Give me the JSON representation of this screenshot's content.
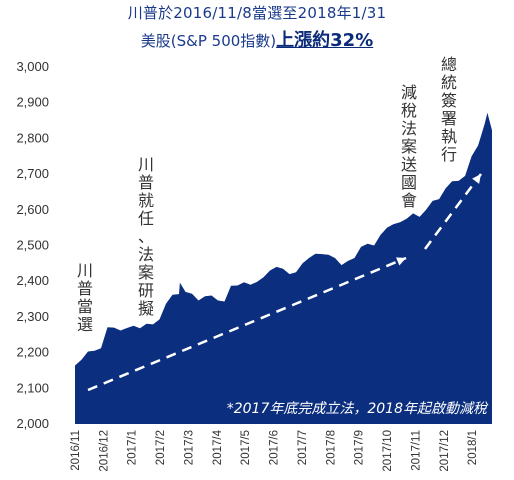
{
  "title_line1": "川普於2016/11/8當選至2018年1/31",
  "title_line2_prefix": "美股(S&P 500指數)",
  "title_line2_highlight": "上漲約32%",
  "colors": {
    "area": "#0b2e7e",
    "title": "#1a3a8c",
    "arrow": "#ffffff",
    "text": "#333333"
  },
  "annotations": {
    "elected": "川普當選",
    "inaugurated": "川普就任、法案研擬",
    "passed": "減稅法案送國會",
    "signed": "總統簽署執行",
    "note": "*2017年底完成立法，2018年起啟動減稅"
  },
  "chart_data": {
    "type": "area",
    "title": "",
    "xlabel": "",
    "ylabel": "",
    "ylim": [
      2000,
      3000
    ],
    "yticks": [
      "2,000",
      "2,100",
      "2,200",
      "2,300",
      "2,400",
      "2,500",
      "2,600",
      "2,700",
      "2,800",
      "2,900",
      "3,000"
    ],
    "xticks": [
      "2016/11",
      "2016/12",
      "2017/1",
      "2017/2",
      "2017/3",
      "2017/4",
      "2017/5",
      "2017/6",
      "2017/7",
      "2017/8",
      "2017/9",
      "2017/10",
      "2017/11",
      "2017/12",
      "2018/1"
    ],
    "x": [
      "2016-11-08",
      "2016-11-15",
      "2016-11-22",
      "2016-11-29",
      "2016-12-06",
      "2016-12-13",
      "2016-12-20",
      "2016-12-27",
      "2017-01-03",
      "2017-01-10",
      "2017-01-17",
      "2017-01-24",
      "2017-01-31",
      "2017-02-07",
      "2017-02-14",
      "2017-02-21",
      "2017-02-28",
      "2017-03-01",
      "2017-03-07",
      "2017-03-14",
      "2017-03-21",
      "2017-03-28",
      "2017-04-04",
      "2017-04-11",
      "2017-04-18",
      "2017-04-25",
      "2017-05-02",
      "2017-05-09",
      "2017-05-16",
      "2017-05-23",
      "2017-05-30",
      "2017-06-06",
      "2017-06-13",
      "2017-06-20",
      "2017-06-27",
      "2017-07-04",
      "2017-07-11",
      "2017-07-18",
      "2017-07-25",
      "2017-08-01",
      "2017-08-08",
      "2017-08-15",
      "2017-08-22",
      "2017-08-29",
      "2017-09-05",
      "2017-09-12",
      "2017-09-19",
      "2017-09-26",
      "2017-10-03",
      "2017-10-10",
      "2017-10-17",
      "2017-10-24",
      "2017-10-31",
      "2017-11-07",
      "2017-11-14",
      "2017-11-21",
      "2017-11-28",
      "2017-12-05",
      "2017-12-12",
      "2017-12-19",
      "2017-12-26",
      "2018-01-02",
      "2018-01-09",
      "2018-01-16",
      "2018-01-23",
      "2018-01-26",
      "2018-01-31"
    ],
    "values": [
      2164,
      2180,
      2203,
      2205,
      2212,
      2271,
      2270,
      2262,
      2269,
      2275,
      2268,
      2281,
      2279,
      2293,
      2337,
      2362,
      2364,
      2396,
      2370,
      2365,
      2346,
      2358,
      2360,
      2346,
      2343,
      2387,
      2388,
      2397,
      2390,
      2398,
      2411,
      2430,
      2440,
      2435,
      2420,
      2425,
      2450,
      2465,
      2477,
      2476,
      2474,
      2465,
      2445,
      2457,
      2465,
      2496,
      2505,
      2500,
      2530,
      2550,
      2560,
      2565,
      2575,
      2590,
      2580,
      2600,
      2625,
      2630,
      2660,
      2680,
      2681,
      2695,
      2750,
      2780,
      2840,
      2872,
      2823
    ]
  }
}
